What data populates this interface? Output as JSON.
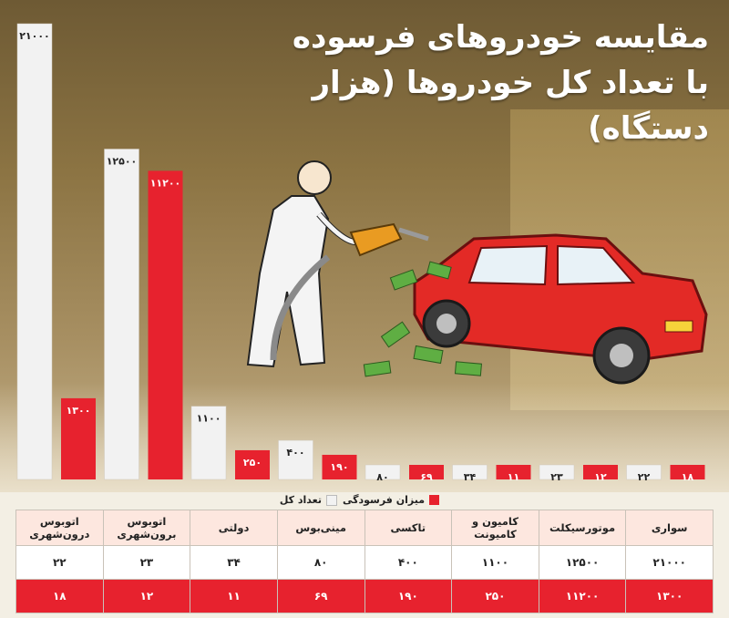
{
  "title": {
    "line1": "مقایسه خودروهای فرسوده",
    "line2": "با تعداد کل خودروها (هزار دستگاه)"
  },
  "legend": {
    "total_label": "تعداد کل",
    "worn_label": "میزان فرسودگی"
  },
  "colors": {
    "total": "#f2f2f2",
    "worn": "#e7222e"
  },
  "chart_data": {
    "type": "bar",
    "categories": [
      "سواری",
      "موتورسیکلت",
      "کامیون و کامیونت",
      "تاکسی",
      "مینی‌بوس",
      "دولتی",
      "اتوبوس برون‌شهری",
      "اتوبوس درون‌شهری"
    ],
    "series": [
      {
        "name": "تعداد کل",
        "values": [
          21000,
          12500,
          1100,
          400,
          80,
          34,
          23,
          22
        ],
        "labels": [
          "۲۱۰۰۰",
          "۱۲۵۰۰",
          "۱۱۰۰",
          "۴۰۰",
          "۸۰",
          "۳۴",
          "۲۳",
          "۲۲"
        ]
      },
      {
        "name": "میزان فرسودگی",
        "values": [
          1300,
          11200,
          250,
          190,
          69,
          11,
          12,
          18
        ],
        "labels": [
          "۱۳۰۰",
          "۱۱۲۰۰",
          "۲۵۰",
          "۱۹۰",
          "۶۹",
          "۱۱",
          "۱۲",
          "۱۸"
        ]
      }
    ],
    "title": "مقایسه خودروهای فرسوده با تعداد کل خودروها (هزار دستگاه)",
    "legend_position": "bottom",
    "grid": false
  }
}
